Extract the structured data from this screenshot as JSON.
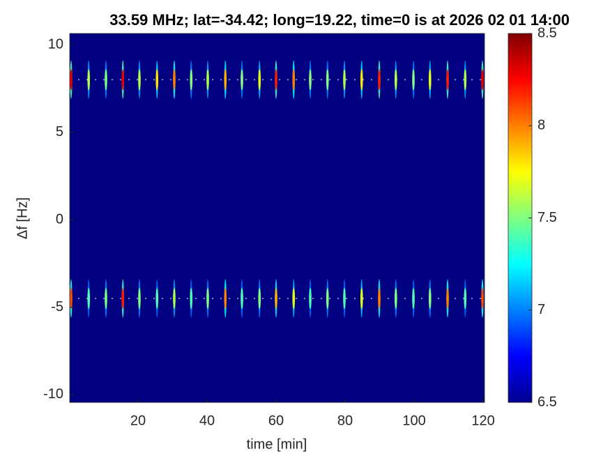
{
  "chart_data": {
    "type": "heatmap",
    "title": "33.59 MHz;  lat=-34.42; long=19.22, time=0 is at 2026 02 01 14:00",
    "xlabel": "time [min]",
    "ylabel": "Δf [Hz]",
    "xlim": [
      0.2,
      120.4
    ],
    "xticks": [
      20,
      40,
      60,
      80,
      100,
      120
    ],
    "ylim": [
      -10.44,
      10.64
    ],
    "yticks": [
      -10,
      -5,
      0,
      5,
      10
    ],
    "clim": [
      6.5,
      8.5
    ],
    "cticks": [
      6.5,
      7,
      7.5,
      8,
      8.5
    ],
    "colormap": "jet",
    "background": 6.5,
    "x": [
      0.6,
      5.7,
      10.7,
      15.6,
      20.4,
      25.5,
      30.5,
      35.4,
      40.2,
      45.3,
      50.1,
      55.2,
      60.0,
      65.1,
      69.9,
      74.9,
      79.8,
      84.8,
      89.9,
      94.7,
      99.8,
      104.6,
      109.7,
      114.8,
      119.8
    ],
    "bands": [
      {
        "f": 8,
        "values": [
          8.3,
          7.6,
          7.5,
          8.3,
          7.6,
          7.8,
          8.0,
          7.5,
          7.6,
          7.9,
          7.5,
          7.7,
          8.2,
          8.0,
          7.5,
          7.5,
          7.6,
          7.8,
          8.2,
          7.6,
          7.5,
          7.7,
          8.2,
          7.6,
          8.3
        ]
      },
      {
        "f": -4.5,
        "values": [
          8.1,
          7.4,
          7.5,
          8.2,
          7.5,
          7.4,
          7.6,
          7.4,
          7.5,
          8.0,
          7.4,
          7.5,
          7.9,
          7.7,
          7.4,
          7.5,
          7.4,
          7.7,
          8.0,
          7.5,
          7.4,
          7.5,
          8.0,
          7.4,
          8.1
        ]
      }
    ]
  }
}
